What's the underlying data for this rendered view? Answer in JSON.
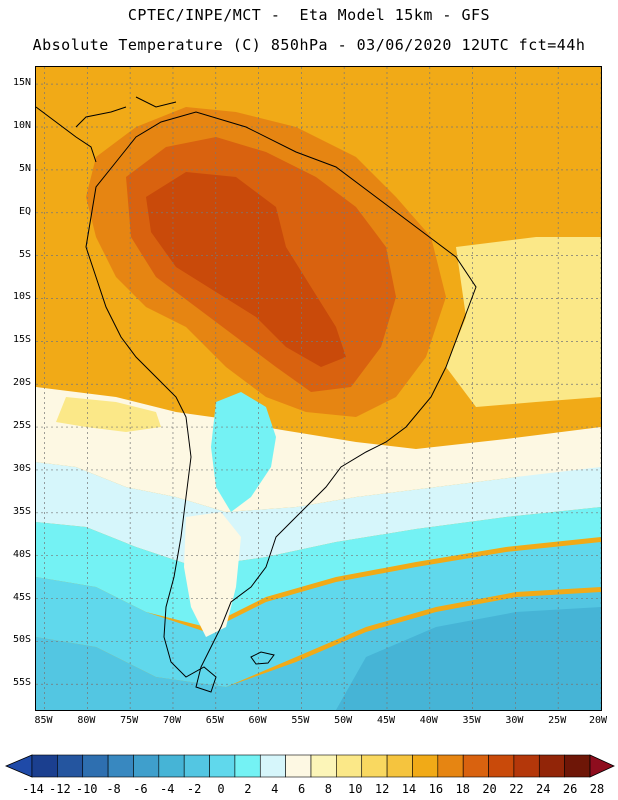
{
  "header": {
    "line1": "CPTEC/INPE/MCT -  Eta Model 15km - GFS",
    "line2": "Absolute Temperature (C) 850hPa - 03/06/2020 12UTC fct=44h"
  },
  "map": {
    "lat_labels": [
      "15N",
      "10N",
      "5N",
      "EQ",
      "5S",
      "10S",
      "15S",
      "20S",
      "25S",
      "30S",
      "35S",
      "40S",
      "45S",
      "50S",
      "55S"
    ],
    "lon_labels": [
      "85W",
      "80W",
      "75W",
      "70W",
      "65W",
      "60W",
      "55W",
      "50W",
      "45W",
      "40W",
      "35W",
      "30W",
      "25W",
      "20W"
    ],
    "lat_range": [
      17,
      -58
    ],
    "lon_range": [
      -86,
      -20
    ]
  },
  "colorbar": {
    "labels": [
      "-14",
      "-12",
      "-10",
      "-8",
      "-6",
      "-4",
      "-2",
      "0",
      "2",
      "4",
      "6",
      "8",
      "10",
      "12",
      "14",
      "16",
      "18",
      "20",
      "22",
      "24",
      "26",
      "28"
    ],
    "colors": [
      "#1b3f8f",
      "#24559f",
      "#2e6fb0",
      "#3888c0",
      "#3f9fcc",
      "#46b4d6",
      "#53c6e2",
      "#60d8ec",
      "#74f2f4",
      "#d6f6fb",
      "#fdf8e3",
      "#fcf5b8",
      "#fbe888",
      "#f9d860",
      "#f5c43e",
      "#f1aa17",
      "#e68512",
      "#d9620f",
      "#c94a0a",
      "#b4370a",
      "#922508",
      "#6e1607"
    ],
    "low_color": "#1f4aa8",
    "high_color": "#8e0d1e"
  },
  "regions": [
    {
      "name": "far-south-ocean",
      "color": "#46b4d6"
    },
    {
      "name": "south-ocean",
      "color": "#53c6e2"
    },
    {
      "name": "cold-belt",
      "color": "#60d8ec"
    },
    {
      "name": "cool-belt",
      "color": "#74f2f4"
    },
    {
      "name": "mild-belt",
      "color": "#d6f6fb"
    },
    {
      "name": "pale-belt",
      "color": "#fdf8e3"
    },
    {
      "name": "yellow-belt",
      "color": "#fbe888"
    },
    {
      "name": "orange-tropics",
      "color": "#f1aa17"
    },
    {
      "name": "warm-continent",
      "color": "#e68512"
    },
    {
      "name": "hot-continent",
      "color": "#d9620f"
    },
    {
      "name": "hottest-core",
      "color": "#c94a0a"
    }
  ]
}
